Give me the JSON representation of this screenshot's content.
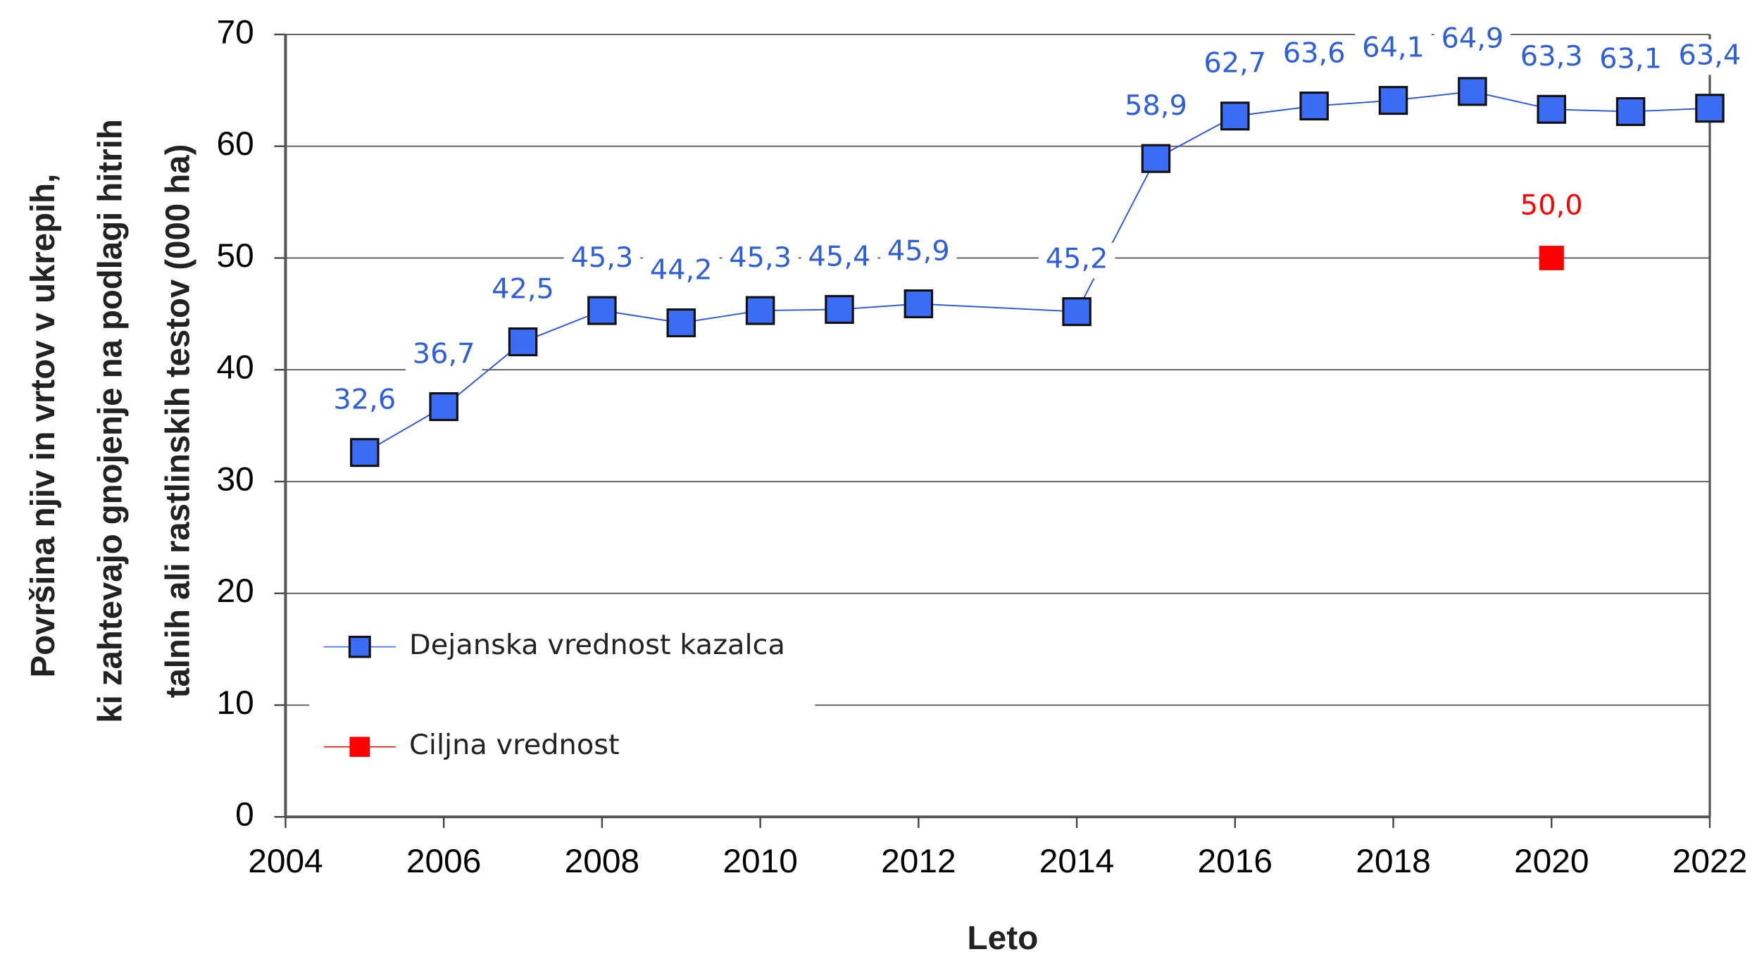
{
  "chart_data": {
    "type": "line",
    "x_label": "Leto",
    "y_label": "Površina njiv in vrtov v ukrepih, ki zahtevajo gnojenje na podlagi hitrih talnih ali rastlinskih testov (000 ha)",
    "series": [
      {
        "name": "Dejanska vrednost kazalca",
        "color": "#3b6cf5",
        "label_color": "#2e5fd6",
        "x": [
          2005,
          2006,
          2007,
          2008,
          2009,
          2010,
          2011,
          2012,
          2014,
          2015,
          2016,
          2017,
          2018,
          2019,
          2020,
          2021,
          2022
        ],
        "values": [
          32.6,
          36.7,
          42.5,
          45.3,
          44.2,
          45.3,
          45.4,
          45.9,
          45.2,
          58.9,
          62.7,
          63.6,
          64.1,
          64.9,
          63.3,
          63.1,
          63.4
        ],
        "value_labels": [
          "32,6",
          "36,7",
          "42,5",
          "45,3",
          "44,2",
          "45,3",
          "45,4",
          "45,9",
          "45,2",
          "58,9",
          "62,7",
          "63,6",
          "64,1",
          "64,9",
          "63,3",
          "63,1",
          "63,4"
        ]
      },
      {
        "name": "Ciljna vrednost",
        "color": "#ff0000",
        "label_color": "#ff0000",
        "x": [
          2020
        ],
        "values": [
          50
        ],
        "value_labels": [
          "50,0"
        ]
      }
    ],
    "xlim": [
      2004,
      2022
    ],
    "xticks": [
      2004,
      2006,
      2008,
      2010,
      2012,
      2014,
      2016,
      2018,
      2020,
      2022
    ],
    "ylim": [
      0,
      70
    ],
    "yticks": [
      0,
      10,
      20,
      30,
      40,
      50,
      60,
      70
    ],
    "grid": true
  }
}
